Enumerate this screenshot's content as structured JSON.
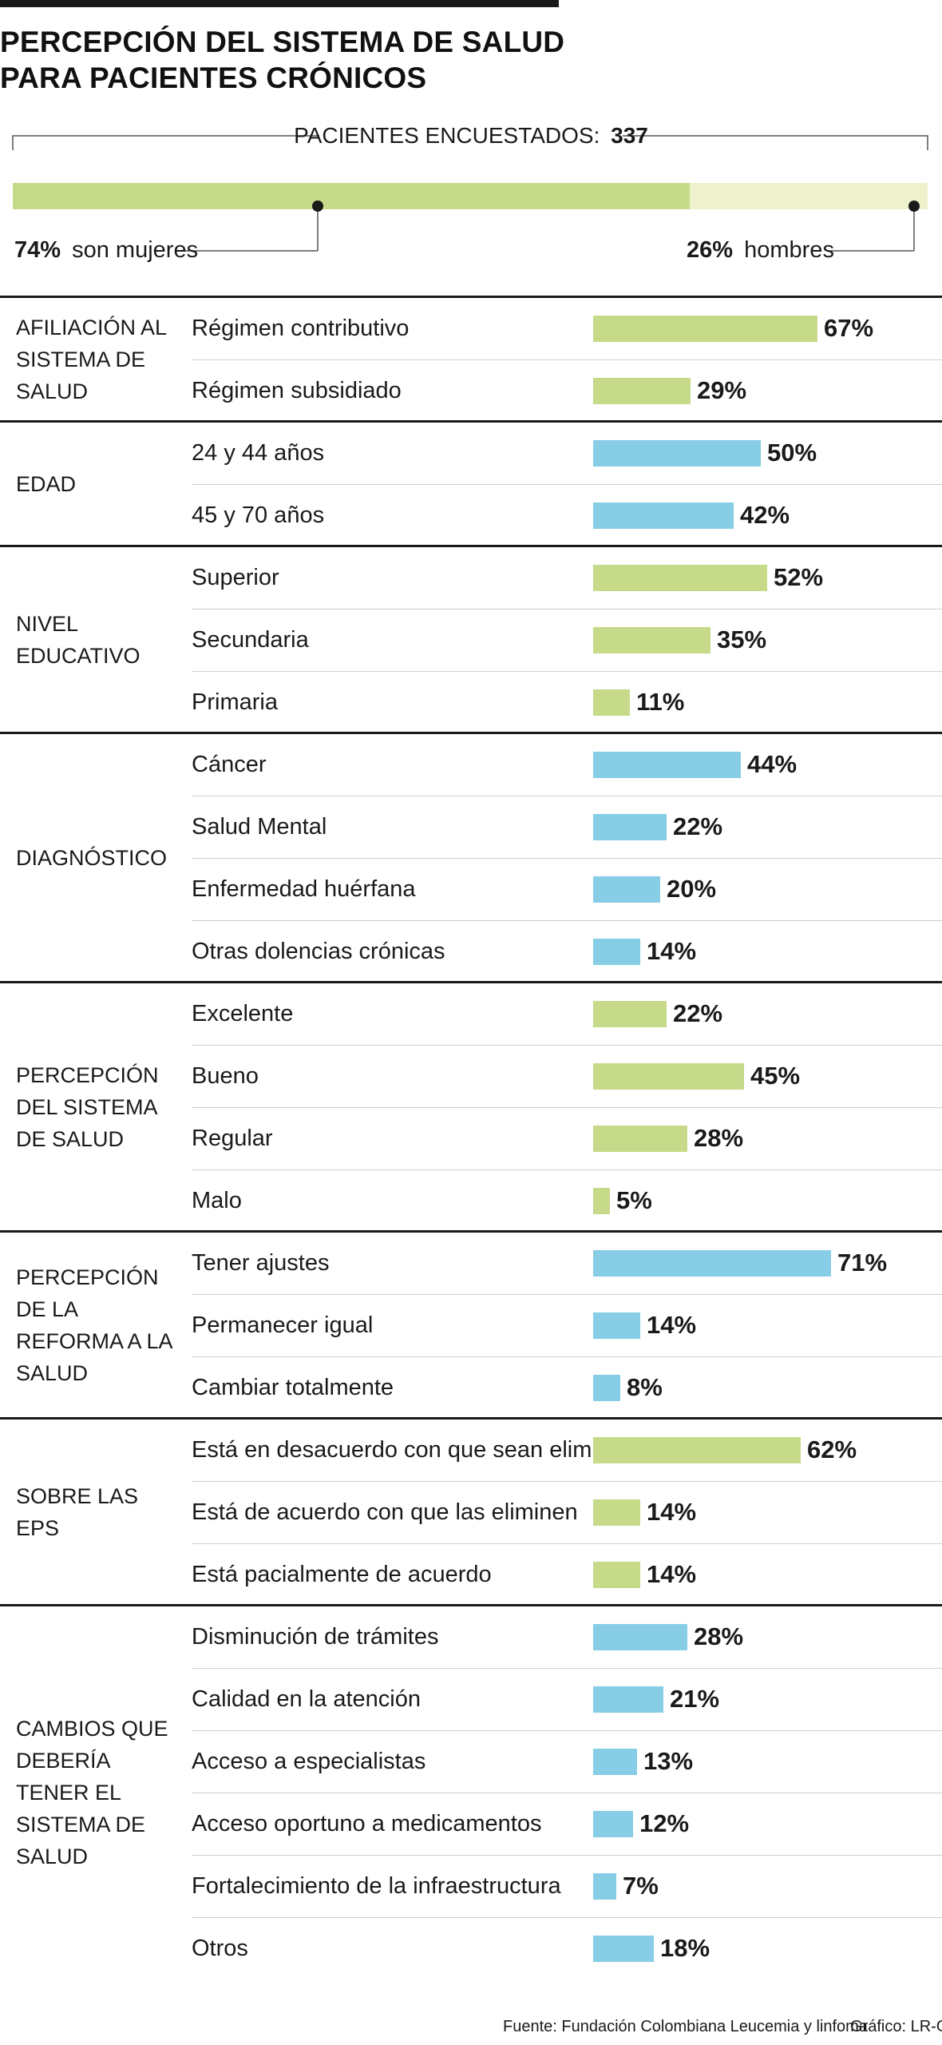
{
  "header": {
    "title_line1": "PERCEPCIÓN DEL SISTEMA DE SALUD",
    "title_line2": "PARA PACIENTES CRÓNICOS"
  },
  "summary": {
    "respondents_label": "PACIENTES ENCUESTADOS:",
    "respondents_value": "337",
    "women_pct": 74,
    "women_pct_label": "74%",
    "women_text": "son mujeres",
    "men_pct": 26,
    "men_pct_label": "26%",
    "men_text": "hombres"
  },
  "colors": {
    "green": "#c6da8a",
    "light_green": "#eef2cc",
    "blue": "#87cde6",
    "text": "#1a1a1a"
  },
  "chart_data": {
    "type": "bar",
    "orientation": "horizontal",
    "title": "PERCEPCIÓN DEL SISTEMA DE SALUD PARA PACIENTES CRÓNICOS",
    "unit": "%",
    "groups": [
      {
        "label": "AFILIACIÓN AL SISTEMA DE SALUD",
        "color": "green",
        "items": [
          {
            "label": "Régimen contributivo",
            "value": 67,
            "display": "67%"
          },
          {
            "label": "Régimen subsidiado",
            "value": 29,
            "display": "29%"
          }
        ]
      },
      {
        "label": "EDAD",
        "color": "blue",
        "items": [
          {
            "label": "24 y 44 años",
            "value": 50,
            "display": "50%"
          },
          {
            "label": "45 y 70 años",
            "value": 42,
            "display": "42%"
          }
        ]
      },
      {
        "label": "NIVEL EDUCATIVO",
        "color": "green",
        "items": [
          {
            "label": "Superior",
            "value": 52,
            "display": "52%"
          },
          {
            "label": "Secundaria",
            "value": 35,
            "display": "35%"
          },
          {
            "label": "Primaria",
            "value": 11,
            "display": "11%"
          }
        ]
      },
      {
        "label": "DIAGNÓSTICO",
        "color": "blue",
        "items": [
          {
            "label": "Cáncer",
            "value": 44,
            "display": "44%"
          },
          {
            "label": "Salud Mental",
            "value": 22,
            "display": "22%"
          },
          {
            "label": "Enfermedad huérfana",
            "value": 20,
            "display": "20%"
          },
          {
            "label": "Otras dolencias crónicas",
            "value": 14,
            "display": "14%"
          }
        ]
      },
      {
        "label": "PERCEPCIÓN DEL SISTEMA DE SALUD",
        "color": "green",
        "items": [
          {
            "label": "Excelente",
            "value": 22,
            "display": "22%"
          },
          {
            "label": "Bueno",
            "value": 45,
            "display": "45%"
          },
          {
            "label": "Regular",
            "value": 28,
            "display": "28%"
          },
          {
            "label": "Malo",
            "value": 5,
            "display": "5%"
          }
        ]
      },
      {
        "label": "PERCEPCIÓN DE LA REFORMA A LA SALUD",
        "color": "blue",
        "items": [
          {
            "label": "Tener ajustes",
            "value": 71,
            "display": "71%"
          },
          {
            "label": "Permanecer igual",
            "value": 14,
            "display": "14%"
          },
          {
            "label": "Cambiar totalmente",
            "value": 8,
            "display": "8%"
          }
        ]
      },
      {
        "label": "SOBRE LAS EPS",
        "color": "green",
        "items": [
          {
            "label": "Está en desacuerdo con que sean eliminadas",
            "value": 62,
            "display": "62%"
          },
          {
            "label": "Está de acuerdo con que las eliminen",
            "value": 14,
            "display": "14%"
          },
          {
            "label": "Está pacialmente de acuerdo",
            "value": 14,
            "display": "14%"
          }
        ]
      },
      {
        "label": "CAMBIOS QUE DEBERÍA TENER EL SISTEMA DE SALUD",
        "color": "blue",
        "items": [
          {
            "label": "Disminución de trámites",
            "value": 28,
            "display": "28%"
          },
          {
            "label": "Calidad en la atención",
            "value": 21,
            "display": "21%"
          },
          {
            "label": "Acceso a especialistas",
            "value": 13,
            "display": "13%"
          },
          {
            "label": "Acceso oportuno a medicamentos",
            "value": 12,
            "display": "12%"
          },
          {
            "label": "Fortalecimiento de la infraestructura",
            "value": 7,
            "display": "7%"
          },
          {
            "label": "Otros",
            "value": 18,
            "display": "18%"
          }
        ]
      }
    ]
  },
  "footer": {
    "source": "Fuente: Fundación Colombiana Leucemia y linfoma",
    "credit": "Gráfico: LR-GR"
  }
}
